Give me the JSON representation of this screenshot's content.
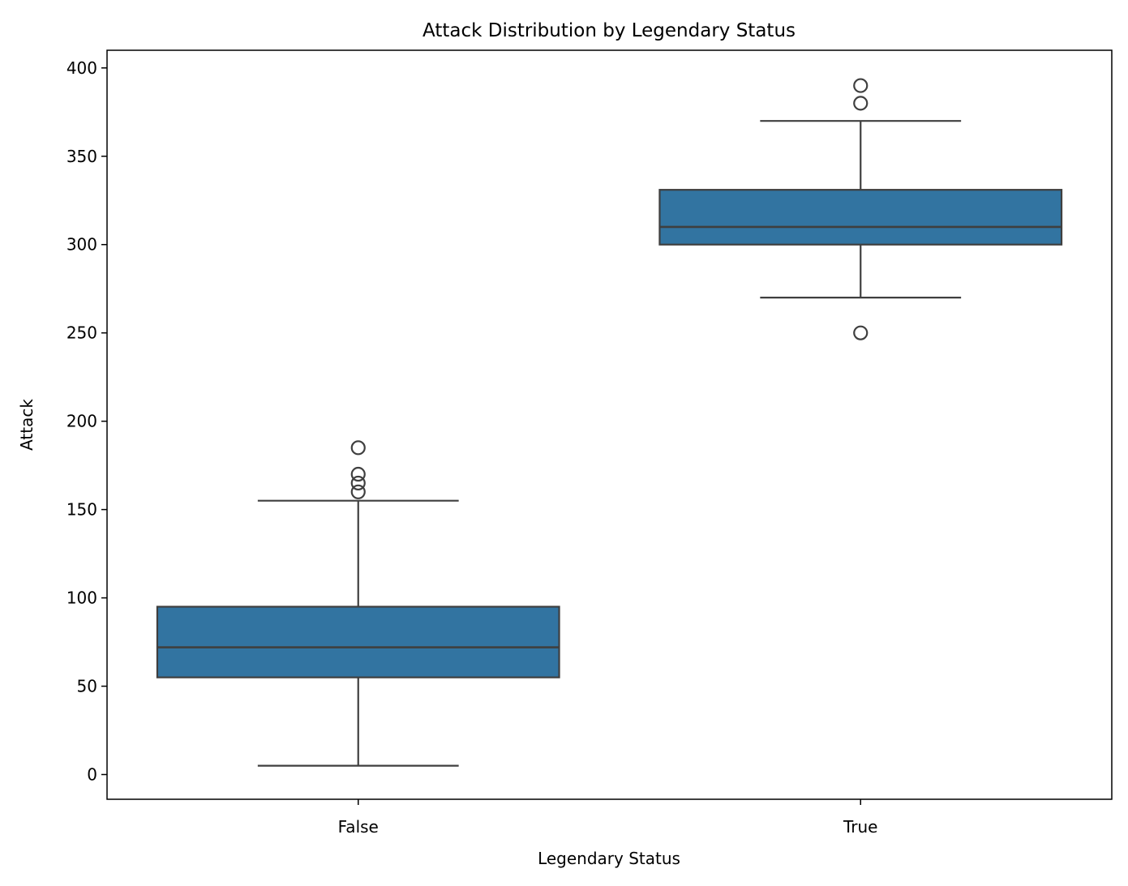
{
  "chart_data": {
    "type": "boxplot",
    "title": "Attack Distribution by Legendary Status",
    "xlabel": "Legendary Status",
    "ylabel": "Attack",
    "categories": [
      "False",
      "True"
    ],
    "ylim": [
      -14,
      410
    ],
    "yticks": [
      0,
      50,
      100,
      150,
      200,
      250,
      300,
      350,
      400
    ],
    "grid": false,
    "colors": {
      "box_fill": "#3274a1",
      "line": "#3f3f3f",
      "axis": "#000000"
    },
    "boxes": [
      {
        "category": "False",
        "whisker_low": 5,
        "q1": 55,
        "median": 72,
        "q3": 95,
        "whisker_high": 155,
        "outliers": [
          160,
          165,
          170,
          185
        ]
      },
      {
        "category": "True",
        "whisker_low": 270,
        "q1": 300,
        "median": 310,
        "q3": 331,
        "whisker_high": 370,
        "outliers": [
          250,
          380,
          390
        ]
      }
    ]
  }
}
